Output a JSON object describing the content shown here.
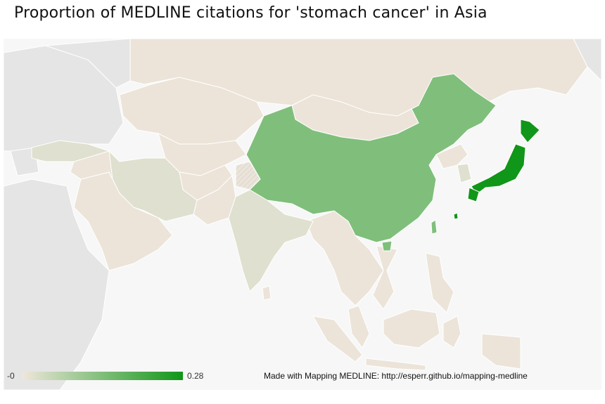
{
  "title": "Proportion of MEDLINE citations for 'stomach cancer' in Asia",
  "legend": {
    "min_label": "-0",
    "max_label": "0.28",
    "min_color": "#efe6da",
    "max_color": "#109618"
  },
  "credit": "Made with Mapping MEDLINE: http://esperr.github.io/mapping-medline",
  "colors": {
    "no_data": "#e5e5e5",
    "low": "#ece4d9",
    "lowmid": "#dfe0cf",
    "mid": "#7fbf7b",
    "high": "#109618",
    "ocean": "#f7f7f7",
    "border": "#ffffff"
  },
  "regions": [
    {
      "name": "Japan",
      "value": 0.28
    },
    {
      "name": "China",
      "value": 0.15
    },
    {
      "name": "Iran",
      "value": 0.04
    },
    {
      "name": "India",
      "value": 0.03
    },
    {
      "name": "Turkey",
      "value": 0.03
    },
    {
      "name": "South Korea",
      "value": 0.04
    }
  ]
}
